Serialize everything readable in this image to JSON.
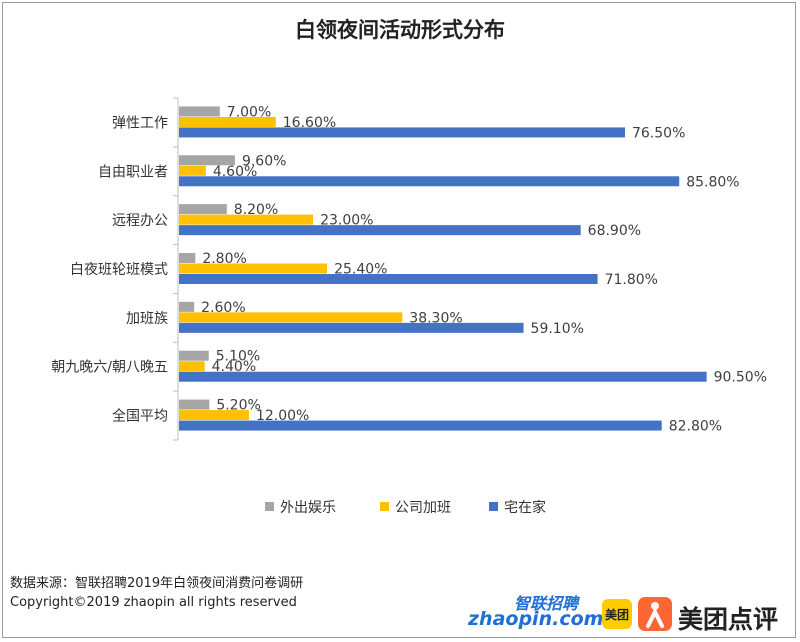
{
  "chart_data": {
    "type": "bar",
    "orientation": "horizontal",
    "title": "白领夜间活动形式分布",
    "categories": [
      "弹性工作",
      "自由职业者",
      "远程办公",
      "白夜班轮班模式",
      "加班族",
      "朝九晚六/朝八晚五",
      "全国平均"
    ],
    "series": [
      {
        "name": "外出娱乐",
        "color": "#a5a5a5",
        "values": [
          7.0,
          9.6,
          8.2,
          2.8,
          2.6,
          5.1,
          5.2
        ],
        "labels": [
          "7.00%",
          "9.60%",
          "8.20%",
          "2.80%",
          "2.60%",
          "5.10%",
          "5.20%"
        ]
      },
      {
        "name": "公司加班",
        "color": "#ffc000",
        "values": [
          16.6,
          4.6,
          23.0,
          25.4,
          38.3,
          4.4,
          12.0
        ],
        "labels": [
          "16.60%",
          "4.60%",
          "23.00%",
          "25.40%",
          "38.30%",
          "4.40%",
          "12.00%"
        ]
      },
      {
        "name": "宅在家",
        "color": "#4472c4",
        "values": [
          76.5,
          85.8,
          68.9,
          71.8,
          59.1,
          90.5,
          82.8
        ],
        "labels": [
          "76.50%",
          "85.80%",
          "68.90%",
          "71.80%",
          "59.10%",
          "90.50%",
          "82.80%"
        ]
      }
    ],
    "xlim": [
      0,
      100
    ],
    "grid": false,
    "legend_position": "bottom"
  },
  "source": {
    "line1": "数据来源：智联招聘2019年白领夜间消费问卷调研",
    "line2": "Copyright©2019 zhaopin all rights reserved"
  },
  "logos": {
    "zhaopin_cn": "智联招聘",
    "zhaopin_url": "zhaopin.com",
    "meituan": "美团",
    "dianping": "美团点评"
  }
}
